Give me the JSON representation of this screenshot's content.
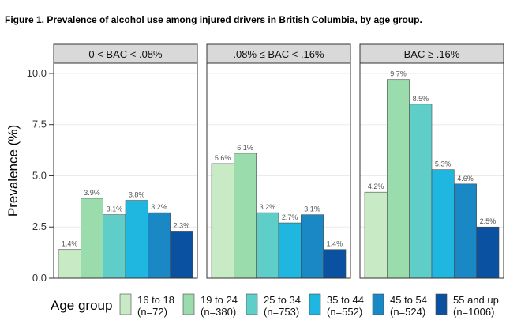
{
  "chart_data": {
    "type": "bar",
    "title": "Figure 1. Prevalence of alcohol use among injured drivers in British Columbia, by age group.",
    "ylabel": "Prevalence (%)",
    "ylim": [
      0,
      10.5
    ],
    "yticks": [
      "0.0",
      "2.5",
      "5.0",
      "7.5",
      "10.0"
    ],
    "ytick_values": [
      0,
      2.5,
      5,
      7.5,
      10
    ],
    "grid": true,
    "legend_position": "bottom",
    "legend_title": "Age group",
    "categories": [
      "16 to 18",
      "19 to 24",
      "25 to 34",
      "35 to 44",
      "45 to 54",
      "55 and up"
    ],
    "legend_labels": [
      [
        "16 to 18",
        "(n=72)"
      ],
      [
        "19 to 24",
        "(n=380)"
      ],
      [
        "25 to 34",
        "(n=753)"
      ],
      [
        "35 to 44",
        "(n=552)"
      ],
      [
        "45 to 54",
        "(n=524)"
      ],
      [
        "55 and up",
        "(n=1006)"
      ]
    ],
    "colors": [
      "#c8eac4",
      "#9bdcad",
      "#5fcdc8",
      "#1fb6df",
      "#1988c4",
      "#0a52a1"
    ],
    "panels": [
      {
        "label": "0 < BAC < .08%",
        "values": [
          1.4,
          3.9,
          3.1,
          3.8,
          3.2,
          2.3
        ],
        "labels": [
          "1.4%",
          "3.9%",
          "3.1%",
          "3.8%",
          "3.2%",
          "2.3%"
        ]
      },
      {
        "label": ".08% ≤ BAC < .16%",
        "values": [
          5.6,
          6.1,
          3.2,
          2.7,
          3.1,
          1.4
        ],
        "labels": [
          "5.6%",
          "6.1%",
          "3.2%",
          "2.7%",
          "3.1%",
          "1.4%"
        ]
      },
      {
        "label": "BAC ≥ .16%",
        "values": [
          4.2,
          9.7,
          8.5,
          5.3,
          4.6,
          2.5
        ],
        "labels": [
          "4.2%",
          "9.7%",
          "8.5%",
          "5.3%",
          "4.6%",
          "2.5%"
        ]
      }
    ]
  }
}
